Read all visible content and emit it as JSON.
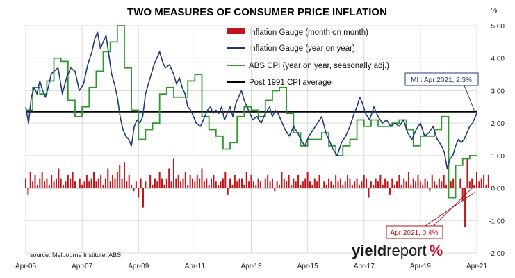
{
  "chart_data": {
    "type": "line",
    "title": "TWO MEASURES OF CONSUMER PRICE INFLATION",
    "y_unit": "%",
    "ylim": [
      -2.0,
      5.0
    ],
    "yticks": [
      "5.00",
      "4.00",
      "3.00",
      "2.00",
      "1.00",
      "0.00",
      "-1.00",
      "-2.00"
    ],
    "ytick_values": [
      5,
      4,
      3,
      2,
      1,
      0,
      -1,
      -2
    ],
    "xlim": [
      2005.25,
      2021.25
    ],
    "xtick_labels": [
      "Apr-05",
      "Apr-07",
      "Apr-09",
      "Apr-11",
      "Apr-13",
      "Apr-15",
      "Apr-17",
      "Apr-19",
      "Apr-21"
    ],
    "xtick_values": [
      2005.25,
      2007.25,
      2009.25,
      2011.25,
      2013.25,
      2015.25,
      2017.25,
      2019.25,
      2021.25
    ],
    "grid": true,
    "legend_position": "top-right",
    "colors": {
      "mom": "#c0151c",
      "yoy": "#1f3b77",
      "cpi": "#2e9a2e",
      "avg": "#000000"
    },
    "series": [
      {
        "name": "Inflation Gauge (month on month)",
        "kind": "bar",
        "color": "#c0151c",
        "start": 2005.25,
        "step": 0.08333,
        "values": [
          0.3,
          -0.2,
          0.5,
          0.2,
          0.4,
          0.1,
          0.3,
          0.5,
          0.2,
          0.3,
          0.1,
          0.4,
          0.2,
          0.3,
          0.6,
          0.3,
          0.1,
          0.2,
          0.4,
          0.3,
          0.5,
          0.2,
          0.0,
          0.3,
          0.1,
          0.2,
          0.4,
          0.2,
          0.3,
          0.5,
          0.2,
          0.3,
          0.4,
          0.1,
          0.3,
          0.6,
          0.2,
          0.4,
          0.3,
          0.5,
          0.7,
          0.3,
          0.8,
          0.2,
          0.4,
          0.1,
          -0.1,
          0.2,
          -0.3,
          0.3,
          -0.6,
          0.2,
          0.0,
          0.4,
          0.1,
          0.3,
          0.2,
          0.5,
          0.3,
          0.1,
          0.3,
          0.6,
          0.2,
          0.9,
          0.3,
          0.4,
          0.2,
          0.3,
          0.5,
          0.1,
          0.4,
          0.3,
          0.2,
          0.4,
          0.3,
          0.6,
          0.2,
          0.3,
          0.1,
          0.3,
          0.4,
          0.2,
          0.1,
          0.2,
          0.3,
          0.5,
          -0.2,
          0.3,
          0.1,
          0.4,
          0.2,
          0.3,
          0.3,
          0.1,
          0.5,
          0.2,
          0.4,
          0.2,
          0.1,
          0.3,
          0.2,
          0.0,
          0.3,
          0.4,
          0.2,
          0.3,
          -0.1,
          0.2,
          0.1,
          0.5,
          0.3,
          0.2,
          0.4,
          0.1,
          0.3,
          0.2,
          0.4,
          0.1,
          0.2,
          0.3,
          0.5,
          0.2,
          0.1,
          0.3,
          0.2,
          0.4,
          0.0,
          0.2,
          0.1,
          0.3,
          0.2,
          0.1,
          0.4,
          0.2,
          0.3,
          0.1,
          0.2,
          0.4,
          0.3,
          0.1,
          0.2,
          0.3,
          0.1,
          0.2,
          0.4,
          0.3,
          -0.3,
          0.2,
          0.1,
          0.3,
          0.2,
          0.4,
          0.1,
          0.3,
          0.2,
          -0.2,
          0.3,
          0.1,
          0.2,
          0.4,
          0.1,
          0.3,
          0.2,
          0.5,
          0.1,
          0.3,
          0.2,
          0.4,
          0.2,
          0.1,
          0.3,
          0.2,
          -0.1,
          0.4,
          0.2,
          0.1,
          0.3,
          0.2,
          0.4,
          0.1,
          0.3,
          0.2,
          0.3,
          0.1,
          0.0,
          0.3,
          -0.4,
          -1.2,
          0.9,
          0.2,
          0.3,
          0.1,
          0.5,
          0.2,
          0.3,
          0.4,
          0.1,
          0.4
        ]
      },
      {
        "name": "Inflation Gauge (year on year)",
        "kind": "line",
        "color": "#1f3b77",
        "x": [
          2005.25,
          2005.35,
          2005.45,
          2005.55,
          2005.65,
          2005.75,
          2005.85,
          2005.95,
          2006.05,
          2006.15,
          2006.25,
          2006.4,
          2006.55,
          2006.7,
          2006.85,
          2007.0,
          2007.15,
          2007.3,
          2007.45,
          2007.6,
          2007.7,
          2007.8,
          2007.9,
          2008.0,
          2008.1,
          2008.2,
          2008.3,
          2008.4,
          2008.5,
          2008.6,
          2008.7,
          2008.8,
          2008.9,
          2009.0,
          2009.1,
          2009.2,
          2009.3,
          2009.4,
          2009.5,
          2009.6,
          2009.7,
          2009.8,
          2009.9,
          2010.0,
          2010.1,
          2010.2,
          2010.35,
          2010.5,
          2010.6,
          2010.7,
          2010.8,
          2010.9,
          2011.0,
          2011.1,
          2011.2,
          2011.3,
          2011.45,
          2011.6,
          2011.7,
          2011.8,
          2011.9,
          2012.0,
          2012.1,
          2012.2,
          2012.3,
          2012.4,
          2012.5,
          2012.6,
          2012.7,
          2012.8,
          2012.9,
          2013.0,
          2013.15,
          2013.3,
          2013.45,
          2013.6,
          2013.75,
          2013.9,
          2014.0,
          2014.1,
          2014.2,
          2014.3,
          2014.45,
          2014.6,
          2014.75,
          2014.9,
          2015.0,
          2015.15,
          2015.3,
          2015.45,
          2015.6,
          2015.75,
          2015.9,
          2016.0,
          2016.15,
          2016.3,
          2016.45,
          2016.6,
          2016.75,
          2016.9,
          2017.0,
          2017.1,
          2017.2,
          2017.3,
          2017.45,
          2017.6,
          2017.75,
          2017.9,
          2018.05,
          2018.2,
          2018.35,
          2018.5,
          2018.65,
          2018.8,
          2018.95,
          2019.1,
          2019.25,
          2019.4,
          2019.55,
          2019.7,
          2019.85,
          2020.0,
          2020.1,
          2020.2,
          2020.3,
          2020.4,
          2020.5,
          2020.6,
          2020.7,
          2020.8,
          2020.9,
          2021.0,
          2021.1,
          2021.25
        ],
        "values": [
          2.5,
          2.0,
          2.8,
          3.1,
          2.9,
          3.3,
          3.0,
          2.8,
          3.1,
          3.5,
          3.6,
          3.7,
          2.9,
          3.4,
          3.7,
          3.6,
          3.0,
          3.2,
          3.8,
          4.2,
          4.6,
          4.8,
          4.3,
          4.5,
          4.7,
          4.1,
          3.5,
          3.2,
          2.8,
          2.2,
          1.8,
          1.6,
          1.5,
          1.3,
          1.9,
          2.1,
          2.0,
          2.2,
          2.9,
          3.2,
          3.5,
          3.8,
          4.0,
          4.2,
          3.9,
          3.7,
          3.8,
          3.5,
          3.2,
          3.4,
          3.1,
          2.9,
          2.5,
          2.4,
          2.2,
          2.0,
          1.9,
          2.2,
          2.4,
          2.5,
          2.3,
          2.4,
          2.3,
          2.5,
          2.1,
          2.3,
          2.5,
          2.2,
          2.6,
          2.8,
          3.0,
          2.7,
          2.4,
          2.1,
          2.2,
          2.0,
          2.3,
          2.5,
          2.2,
          2.4,
          2.3,
          2.1,
          1.8,
          1.6,
          1.9,
          1.7,
          1.5,
          1.3,
          1.6,
          1.8,
          2.0,
          2.2,
          1.7,
          1.5,
          1.2,
          1.0,
          1.4,
          1.6,
          1.9,
          2.3,
          2.5,
          2.8,
          2.6,
          2.3,
          2.1,
          2.5,
          2.2,
          2.0,
          2.1,
          1.9,
          2.0,
          1.9,
          2.1,
          1.7,
          1.5,
          1.8,
          2.0,
          1.6,
          1.7,
          1.9,
          1.5,
          1.3,
          1.1,
          0.6,
          0.9,
          1.0,
          1.3,
          1.5,
          1.4,
          1.5,
          1.7,
          1.9,
          2.0,
          2.3
        ]
      },
      {
        "name": "ABS CPI (year on year, seasonally adj.)",
        "kind": "step",
        "color": "#2e9a2e",
        "x": [
          2005.25,
          2005.5,
          2005.75,
          2006.0,
          2006.25,
          2006.5,
          2006.75,
          2007.0,
          2007.25,
          2007.5,
          2007.75,
          2008.0,
          2008.25,
          2008.5,
          2008.75,
          2009.0,
          2009.25,
          2009.5,
          2009.75,
          2010.0,
          2010.25,
          2010.5,
          2010.75,
          2011.0,
          2011.25,
          2011.5,
          2011.75,
          2012.0,
          2012.25,
          2012.5,
          2012.75,
          2013.0,
          2013.25,
          2013.5,
          2013.75,
          2014.0,
          2014.25,
          2014.5,
          2014.75,
          2015.0,
          2015.25,
          2015.5,
          2015.75,
          2016.0,
          2016.25,
          2016.5,
          2016.75,
          2017.0,
          2017.25,
          2017.5,
          2017.75,
          2018.0,
          2018.25,
          2018.5,
          2018.75,
          2019.0,
          2019.25,
          2019.5,
          2019.75,
          2020.0,
          2020.25,
          2020.5,
          2020.75,
          2021.0,
          2021.25
        ],
        "values": [
          2.4,
          3.1,
          2.9,
          3.3,
          4.0,
          3.9,
          2.7,
          2.2,
          2.5,
          3.1,
          3.6,
          4.2,
          4.5,
          5.0,
          3.7,
          2.4,
          1.5,
          1.8,
          2.0,
          2.9,
          3.1,
          2.8,
          2.8,
          3.3,
          3.5,
          2.2,
          1.8,
          1.6,
          1.2,
          1.4,
          2.2,
          2.5,
          2.4,
          2.2,
          2.7,
          3.0,
          3.1,
          2.3,
          1.7,
          1.3,
          1.5,
          1.5,
          1.7,
          1.3,
          1.0,
          1.3,
          1.5,
          2.1,
          1.9,
          2.1,
          1.9,
          1.9,
          2.0,
          2.1,
          1.8,
          1.3,
          1.6,
          1.6,
          1.8,
          2.2,
          -0.3,
          0.7,
          0.9,
          1.0,
          1.0
        ]
      },
      {
        "name": "Post 1991 CPI average",
        "kind": "hline",
        "color": "#000000",
        "value": 2.35
      }
    ],
    "annotations": {
      "mi_label": "MI : Apr 2021, 2.3%",
      "mom_label": "Apr 2021, 0.4%"
    },
    "source": "source: Melbourne Institute, ABS"
  },
  "logo": {
    "part1": "yield",
    "part2": "report",
    "part3": "%"
  }
}
